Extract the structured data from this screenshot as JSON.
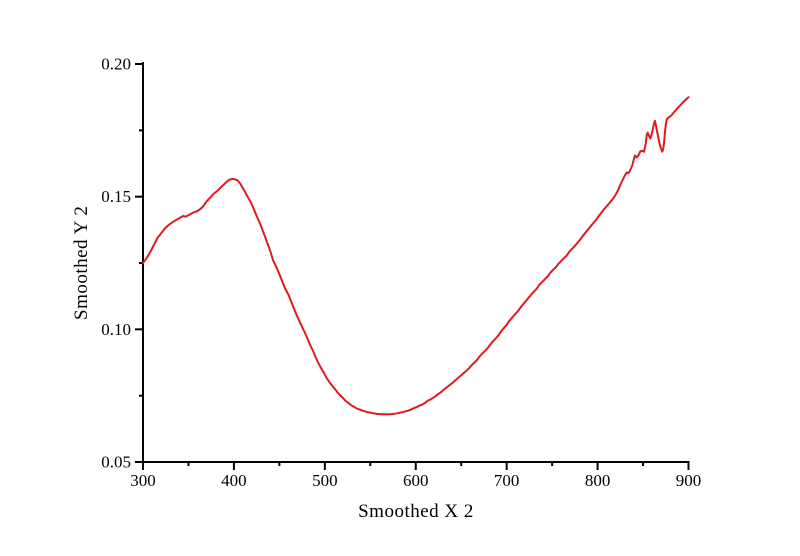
{
  "figure": {
    "background": "#ffffff",
    "axis_color": "#000000",
    "text_color": "#000000"
  },
  "chart_data": {
    "type": "line",
    "title": "",
    "xlabel": "Smoothed X 2",
    "ylabel": "Smoothed Y 2",
    "xlim": [
      300,
      900
    ],
    "ylim": [
      0.05,
      0.2
    ],
    "grid": false,
    "legend_position": "none",
    "x_major_ticks": [
      300,
      400,
      500,
      600,
      700,
      800,
      900
    ],
    "x_tick_labels": [
      "300",
      "400",
      "500",
      "600",
      "700",
      "800",
      "900"
    ],
    "x_minor_ticks": [
      350,
      450,
      550,
      650,
      750,
      850
    ],
    "y_major_ticks": [
      0.05,
      0.1,
      0.15,
      0.2
    ],
    "y_tick_labels": [
      "0.05",
      "0.10",
      "0.15",
      "0.20"
    ],
    "y_minor_ticks": [
      0.075,
      0.125,
      0.175
    ],
    "series": [
      {
        "name": "Smoothed Y 2",
        "color": "#e01b20",
        "line_width": 2,
        "points": [
          [
            300,
            0.125
          ],
          [
            304,
            0.1268
          ],
          [
            308,
            0.1292
          ],
          [
            312,
            0.1318
          ],
          [
            316,
            0.1345
          ],
          [
            320,
            0.1362
          ],
          [
            324,
            0.138
          ],
          [
            328,
            0.1393
          ],
          [
            333,
            0.1405
          ],
          [
            337,
            0.1413
          ],
          [
            341,
            0.1421
          ],
          [
            344,
            0.1427
          ],
          [
            347,
            0.1425
          ],
          [
            351,
            0.1432
          ],
          [
            355,
            0.144
          ],
          [
            359,
            0.1444
          ],
          [
            363,
            0.1453
          ],
          [
            366,
            0.1463
          ],
          [
            370,
            0.1482
          ],
          [
            374,
            0.1497
          ],
          [
            378,
            0.1512
          ],
          [
            382,
            0.1523
          ],
          [
            385,
            0.1533
          ],
          [
            389,
            0.1546
          ],
          [
            392,
            0.1556
          ],
          [
            395,
            0.1564
          ],
          [
            398,
            0.1567
          ],
          [
            401,
            0.1566
          ],
          [
            404,
            0.1561
          ],
          [
            407,
            0.1549
          ],
          [
            410,
            0.1531
          ],
          [
            413,
            0.1513
          ],
          [
            416,
            0.1494
          ],
          [
            419,
            0.1476
          ],
          [
            422,
            0.1452
          ],
          [
            425,
            0.1428
          ],
          [
            428,
            0.1404
          ],
          [
            431,
            0.1379
          ],
          [
            434,
            0.1351
          ],
          [
            437,
            0.1322
          ],
          [
            440,
            0.1295
          ],
          [
            443,
            0.1261
          ],
          [
            446,
            0.124
          ],
          [
            450,
            0.1208
          ],
          [
            453,
            0.1182
          ],
          [
            456,
            0.1156
          ],
          [
            460,
            0.113
          ],
          [
            463,
            0.1104
          ],
          [
            466,
            0.1079
          ],
          [
            469,
            0.1054
          ],
          [
            472,
            0.1031
          ],
          [
            475,
            0.1009
          ],
          [
            478,
            0.0988
          ],
          [
            481,
            0.0964
          ],
          [
            484,
            0.094
          ],
          [
            487,
            0.0919
          ],
          [
            490,
            0.0894
          ],
          [
            493,
            0.0872
          ],
          [
            496,
            0.0853
          ],
          [
            499,
            0.0836
          ],
          [
            502,
            0.0816
          ],
          [
            505,
            0.0801
          ],
          [
            508,
            0.0788
          ],
          [
            511,
            0.0776
          ],
          [
            514,
            0.0762
          ],
          [
            517,
            0.0751
          ],
          [
            520,
            0.0741
          ],
          [
            523,
            0.073
          ],
          [
            526,
            0.0722
          ],
          [
            529,
            0.0714
          ],
          [
            532,
            0.0708
          ],
          [
            535,
            0.0702
          ],
          [
            538,
            0.0698
          ],
          [
            541,
            0.0694
          ],
          [
            544,
            0.0691
          ],
          [
            547,
            0.0688
          ],
          [
            550,
            0.0686
          ],
          [
            553,
            0.0684
          ],
          [
            556,
            0.0682
          ],
          [
            559,
            0.0681
          ],
          [
            562,
            0.068
          ],
          [
            565,
            0.068
          ],
          [
            568,
            0.068
          ],
          [
            571,
            0.068
          ],
          [
            574,
            0.0681
          ],
          [
            577,
            0.0682
          ],
          [
            580,
            0.0684
          ],
          [
            583,
            0.0686
          ],
          [
            586,
            0.0688
          ],
          [
            589,
            0.0691
          ],
          [
            592,
            0.0694
          ],
          [
            595,
            0.0698
          ],
          [
            598,
            0.0703
          ],
          [
            601,
            0.0707
          ],
          [
            604,
            0.0712
          ],
          [
            607,
            0.0716
          ],
          [
            610,
            0.0722
          ],
          [
            613,
            0.0731
          ],
          [
            616,
            0.0735
          ],
          [
            619,
            0.0742
          ],
          [
            622,
            0.0749
          ],
          [
            625,
            0.0757
          ],
          [
            628,
            0.0764
          ],
          [
            631,
            0.0773
          ],
          [
            634,
            0.0781
          ],
          [
            637,
            0.0789
          ],
          [
            640,
            0.0797
          ],
          [
            643,
            0.0806
          ],
          [
            646,
            0.0815
          ],
          [
            649,
            0.0824
          ],
          [
            652,
            0.0833
          ],
          [
            655,
            0.0842
          ],
          [
            658,
            0.0851
          ],
          [
            661,
            0.0863
          ],
          [
            664,
            0.0873
          ],
          [
            667,
            0.0883
          ],
          [
            670,
            0.0897
          ],
          [
            673,
            0.0908
          ],
          [
            676,
            0.0918
          ],
          [
            679,
            0.0929
          ],
          [
            682,
            0.0943
          ],
          [
            685,
            0.0955
          ],
          [
            688,
            0.0966
          ],
          [
            691,
            0.0978
          ],
          [
            694,
            0.0993
          ],
          [
            697,
            0.1005
          ],
          [
            700,
            0.1017
          ],
          [
            703,
            0.1032
          ],
          [
            706,
            0.1044
          ],
          [
            709,
            0.1056
          ],
          [
            712,
            0.1067
          ],
          [
            715,
            0.1081
          ],
          [
            718,
            0.1094
          ],
          [
            721,
            0.1106
          ],
          [
            724,
            0.1119
          ],
          [
            727,
            0.1131
          ],
          [
            730,
            0.1142
          ],
          [
            733,
            0.1153
          ],
          [
            736,
            0.1168
          ],
          [
            739,
            0.1178
          ],
          [
            742,
            0.1189
          ],
          [
            745,
            0.1199
          ],
          [
            748,
            0.1213
          ],
          [
            751,
            0.1224
          ],
          [
            754,
            0.1234
          ],
          [
            757,
            0.1247
          ],
          [
            760,
            0.1257
          ],
          [
            763,
            0.1268
          ],
          [
            766,
            0.1278
          ],
          [
            769,
            0.1293
          ],
          [
            772,
            0.1303
          ],
          [
            775,
            0.1315
          ],
          [
            778,
            0.1326
          ],
          [
            781,
            0.1339
          ],
          [
            784,
            0.1353
          ],
          [
            787,
            0.1366
          ],
          [
            790,
            0.1378
          ],
          [
            793,
            0.1391
          ],
          [
            796,
            0.1403
          ],
          [
            799,
            0.1416
          ],
          [
            802,
            0.143
          ],
          [
            805,
            0.1443
          ],
          [
            808,
            0.1456
          ],
          [
            811,
            0.1468
          ],
          [
            814,
            0.148
          ],
          [
            817,
            0.1492
          ],
          [
            820,
            0.1508
          ],
          [
            823,
            0.1528
          ],
          [
            826,
            0.1552
          ],
          [
            828,
            0.1566
          ],
          [
            830,
            0.158
          ],
          [
            832,
            0.1591
          ],
          [
            834,
            0.1589
          ],
          [
            836,
            0.1601
          ],
          [
            838,
            0.1616
          ],
          [
            840,
            0.1643
          ],
          [
            841,
            0.1655
          ],
          [
            843,
            0.1648
          ],
          [
            845,
            0.1656
          ],
          [
            847,
            0.1671
          ],
          [
            849,
            0.1673
          ],
          [
            851,
            0.1669
          ],
          [
            853,
            0.1701
          ],
          [
            854,
            0.1732
          ],
          [
            855,
            0.1741
          ],
          [
            857,
            0.1726
          ],
          [
            858,
            0.1719
          ],
          [
            860,
            0.1741
          ],
          [
            862,
            0.1776
          ],
          [
            863,
            0.1786
          ],
          [
            864,
            0.1771
          ],
          [
            866,
            0.1736
          ],
          [
            868,
            0.1701
          ],
          [
            870,
            0.1679
          ],
          [
            871,
            0.167
          ],
          [
            872,
            0.1676
          ],
          [
            873,
            0.1701
          ],
          [
            874,
            0.1741
          ],
          [
            875,
            0.1771
          ],
          [
            876,
            0.1791
          ],
          [
            878,
            0.1798
          ],
          [
            881,
            0.1806
          ],
          [
            884,
            0.1818
          ],
          [
            887,
            0.183
          ],
          [
            890,
            0.1841
          ],
          [
            893,
            0.1852
          ],
          [
            896,
            0.1863
          ],
          [
            900,
            0.1875
          ]
        ]
      }
    ]
  }
}
